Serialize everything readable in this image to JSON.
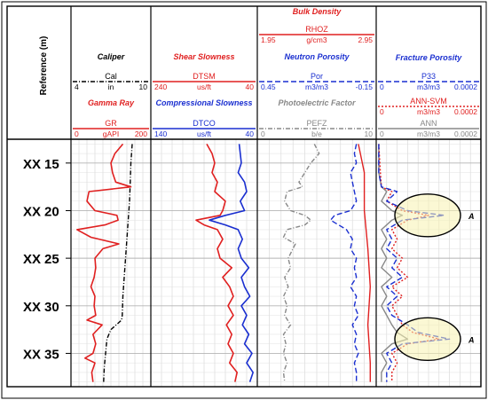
{
  "header": {
    "depth_title": "Reference (m)"
  },
  "depth_labels": [
    {
      "prefix": "XX",
      "value": "15",
      "depth": 15
    },
    {
      "prefix": "XX",
      "value": "20",
      "depth": 20
    },
    {
      "prefix": "XX",
      "value": "25",
      "depth": 25
    },
    {
      "prefix": "XX",
      "value": "30",
      "depth": 30
    },
    {
      "prefix": "XX",
      "value": "35",
      "depth": 35
    }
  ],
  "annotations": [
    {
      "label": "A",
      "depth": 20.5
    },
    {
      "label": "A",
      "depth": 33.5
    }
  ],
  "tracks": [
    {
      "curves": [
        {
          "title": "Caliper",
          "mnemonic": "Cal",
          "unit": "in",
          "min": "4",
          "max": "10",
          "color": "#000000",
          "dash": "5,2,1,2"
        },
        {
          "title": "Gamma Ray",
          "mnemonic": "GR",
          "unit": "gAPI",
          "min": "0",
          "max": "200",
          "color": "#e02020",
          "dash": ""
        }
      ]
    },
    {
      "curves": [
        {
          "title": "Shear Slowness",
          "mnemonic": "DTSM",
          "unit": "us/ft",
          "min": "240",
          "max": "40",
          "color": "#e02020",
          "dash": ""
        },
        {
          "title": "Compressional Slowness",
          "mnemonic": "DTCO",
          "unit": "us/ft",
          "min": "140",
          "max": "40",
          "color": "#1a2fd0",
          "dash": ""
        }
      ]
    },
    {
      "curves": [
        {
          "title": "Bulk Density",
          "mnemonic": "RHOZ",
          "unit": "g/cm3",
          "min": "1.95",
          "max": "2.95",
          "color": "#e02020",
          "dash": ""
        },
        {
          "title": "Neutron Porosity",
          "mnemonic": "Por",
          "unit": "m3/m3",
          "min": "0.45",
          "max": "-0.15",
          "color": "#1a2fd0",
          "dash": "6,3"
        },
        {
          "title": "Photoelectric Factor",
          "mnemonic": "PEFZ",
          "unit": "b/e",
          "min": "0",
          "max": "10",
          "color": "#888888",
          "dash": "5,2,1,2"
        }
      ]
    },
    {
      "curves": [
        {
          "title": "Fracture Porosity",
          "mnemonic": "P33",
          "unit": "m3/m3",
          "min": "0",
          "max": "0.0002",
          "color": "#1a2fd0",
          "dash": "6,3"
        },
        {
          "title": "",
          "mnemonic": "ANN-SVM",
          "unit": "m3/m3",
          "min": "0",
          "max": "0.0002",
          "color": "#e02020",
          "dash": "2,2"
        },
        {
          "title": "",
          "mnemonic": "ANN",
          "unit": "m3/m3",
          "min": "0",
          "max": "0.0002",
          "color": "#888888",
          "dash": ""
        }
      ]
    }
  ],
  "chart_data": {
    "type": "line",
    "depth_range": [
      12.5,
      38.5
    ],
    "depth_unit": "m",
    "curves": {
      "GR": {
        "range": [
          0,
          200
        ],
        "points": [
          [
            13.0,
            130
          ],
          [
            14.0,
            110
          ],
          [
            15.0,
            100
          ],
          [
            16.0,
            104
          ],
          [
            17.0,
            112
          ],
          [
            17.5,
            150
          ],
          [
            18.0,
            45
          ],
          [
            19.0,
            40
          ],
          [
            20.0,
            60
          ],
          [
            20.5,
            115
          ],
          [
            21.0,
            118
          ],
          [
            21.5,
            85
          ],
          [
            22.0,
            15
          ],
          [
            22.8,
            50
          ],
          [
            23.5,
            120
          ],
          [
            24.0,
            80
          ],
          [
            25.0,
            60
          ],
          [
            26.0,
            62
          ],
          [
            27.0,
            58
          ],
          [
            28.0,
            50
          ],
          [
            29.0,
            60
          ],
          [
            30.0,
            58
          ],
          [
            31.0,
            62
          ],
          [
            31.5,
            40
          ],
          [
            32.0,
            78
          ],
          [
            33.0,
            55
          ],
          [
            34.0,
            62
          ],
          [
            35.0,
            55
          ],
          [
            35.5,
            35
          ],
          [
            36.0,
            60
          ],
          [
            37.0,
            52
          ],
          [
            38.0,
            55
          ]
        ]
      },
      "Cal": {
        "range": [
          4,
          10
        ],
        "points": [
          [
            13.0,
            8.6
          ],
          [
            15.0,
            8.5
          ],
          [
            17.0,
            8.45
          ],
          [
            19.0,
            8.4
          ],
          [
            21.0,
            8.3
          ],
          [
            23.0,
            8.2
          ],
          [
            25.0,
            8.1
          ],
          [
            27.0,
            8.0
          ],
          [
            29.0,
            7.9
          ],
          [
            31.0,
            7.85
          ],
          [
            31.5,
            7.8
          ],
          [
            32.0,
            7.4
          ],
          [
            32.5,
            7.0
          ],
          [
            33.5,
            6.7
          ],
          [
            35.0,
            6.6
          ],
          [
            36.5,
            6.5
          ],
          [
            38.0,
            6.45
          ]
        ]
      },
      "DTSM": {
        "range": [
          240,
          40
        ],
        "points": [
          [
            13.0,
            135
          ],
          [
            14.0,
            125
          ],
          [
            15.0,
            120
          ],
          [
            16.0,
            125
          ],
          [
            17.0,
            115
          ],
          [
            18.0,
            120
          ],
          [
            19.0,
            100
          ],
          [
            20.0,
            105
          ],
          [
            20.5,
            110
          ],
          [
            21.0,
            155
          ],
          [
            21.5,
            140
          ],
          [
            22.0,
            115
          ],
          [
            23.0,
            105
          ],
          [
            24.0,
            115
          ],
          [
            25.0,
            110
          ],
          [
            26.0,
            88
          ],
          [
            27.0,
            105
          ],
          [
            28.0,
            92
          ],
          [
            29.0,
            85
          ],
          [
            30.0,
            95
          ],
          [
            31.0,
            85
          ],
          [
            32.0,
            98
          ],
          [
            33.0,
            88
          ],
          [
            34.0,
            95
          ],
          [
            35.0,
            85
          ],
          [
            36.0,
            92
          ],
          [
            37.0,
            78
          ],
          [
            38.0,
            82
          ]
        ]
      },
      "DTCO": {
        "range": [
          140,
          40
        ],
        "points": [
          [
            13.0,
            57
          ],
          [
            14.0,
            56
          ],
          [
            15.0,
            55
          ],
          [
            16.0,
            58
          ],
          [
            17.0,
            52
          ],
          [
            18.0,
            50
          ],
          [
            19.0,
            56
          ],
          [
            20.0,
            52
          ],
          [
            20.5,
            70
          ],
          [
            21.0,
            85
          ],
          [
            21.5,
            70
          ],
          [
            22.0,
            58
          ],
          [
            23.0,
            54
          ],
          [
            24.0,
            58
          ],
          [
            25.0,
            55
          ],
          [
            26.0,
            48
          ],
          [
            27.0,
            55
          ],
          [
            28.0,
            52
          ],
          [
            29.0,
            47
          ],
          [
            30.0,
            55
          ],
          [
            31.0,
            50
          ],
          [
            32.0,
            54
          ],
          [
            33.0,
            48
          ],
          [
            34.0,
            52
          ],
          [
            35.0,
            45
          ],
          [
            36.0,
            50
          ],
          [
            37.0,
            44
          ],
          [
            38.0,
            47
          ]
        ]
      },
      "RHOZ": {
        "range": [
          1.95,
          2.95
        ],
        "points": [
          [
            13.0,
            2.8
          ],
          [
            16.0,
            2.85
          ],
          [
            20.0,
            2.85
          ],
          [
            24.0,
            2.88
          ],
          [
            28.0,
            2.9
          ],
          [
            32.0,
            2.88
          ],
          [
            36.0,
            2.9
          ],
          [
            38.0,
            2.9
          ]
        ]
      },
      "Por": {
        "range": [
          0.45,
          -0.15
        ],
        "points": [
          [
            13.0,
            -0.05
          ],
          [
            14.0,
            -0.04
          ],
          [
            15.0,
            -0.05
          ],
          [
            16.0,
            -0.02
          ],
          [
            17.0,
            -0.03
          ],
          [
            18.0,
            -0.04
          ],
          [
            19.0,
            -0.05
          ],
          [
            20.0,
            -0.02
          ],
          [
            20.5,
            0.06
          ],
          [
            21.0,
            0.08
          ],
          [
            21.5,
            0.04
          ],
          [
            22.0,
            0.0
          ],
          [
            23.0,
            -0.03
          ],
          [
            24.0,
            -0.02
          ],
          [
            25.0,
            -0.05
          ],
          [
            26.0,
            -0.04
          ],
          [
            27.0,
            -0.05
          ],
          [
            28.0,
            -0.02
          ],
          [
            29.0,
            -0.05
          ],
          [
            30.0,
            -0.04
          ],
          [
            31.0,
            -0.06
          ],
          [
            32.0,
            -0.03
          ],
          [
            33.0,
            -0.05
          ],
          [
            34.0,
            -0.04
          ],
          [
            35.0,
            -0.06
          ],
          [
            36.0,
            -0.04
          ],
          [
            37.0,
            -0.05
          ],
          [
            38.0,
            -0.05
          ]
        ]
      },
      "PEFZ": {
        "range": [
          0,
          10
        ],
        "points": [
          [
            13.0,
            4.8
          ],
          [
            14.0,
            5.2
          ],
          [
            15.0,
            4.5
          ],
          [
            16.0,
            4.0
          ],
          [
            17.0,
            3.5
          ],
          [
            17.5,
            3.8
          ],
          [
            18.0,
            2.5
          ],
          [
            19.0,
            2.3
          ],
          [
            20.0,
            2.8
          ],
          [
            20.5,
            4.0
          ],
          [
            21.0,
            4.5
          ],
          [
            21.5,
            4.0
          ],
          [
            22.0,
            2.5
          ],
          [
            22.8,
            2.2
          ],
          [
            23.5,
            3.2
          ],
          [
            24.0,
            3.0
          ],
          [
            25.0,
            2.6
          ],
          [
            26.0,
            2.8
          ],
          [
            27.0,
            2.3
          ],
          [
            28.0,
            2.6
          ],
          [
            29.0,
            2.2
          ],
          [
            30.0,
            2.5
          ],
          [
            31.0,
            2.3
          ],
          [
            32.0,
            2.8
          ],
          [
            33.0,
            2.2
          ],
          [
            34.0,
            2.4
          ],
          [
            35.0,
            2.2
          ],
          [
            36.0,
            2.5
          ],
          [
            37.0,
            2.2
          ],
          [
            38.0,
            2.3
          ]
        ]
      },
      "P33": {
        "range": [
          0,
          0.0002
        ],
        "points": [
          [
            13.0,
            5e-06
          ],
          [
            16.0,
            5e-06
          ],
          [
            17.5,
            1e-05
          ],
          [
            18.0,
            4e-05
          ],
          [
            19.0,
            2e-05
          ],
          [
            20.0,
            6e-05
          ],
          [
            20.5,
            0.00013
          ],
          [
            21.0,
            5e-05
          ],
          [
            22.0,
            2e-05
          ],
          [
            23.0,
            3e-05
          ],
          [
            24.0,
            2e-05
          ],
          [
            25.0,
            4e-05
          ],
          [
            26.0,
            3e-05
          ],
          [
            27.0,
            5e-05
          ],
          [
            28.0,
            2e-05
          ],
          [
            29.0,
            4e-05
          ],
          [
            30.0,
            2e-05
          ],
          [
            31.0,
            3e-05
          ],
          [
            32.0,
            6e-05
          ],
          [
            32.8,
            8e-05
          ],
          [
            33.5,
            0.00014
          ],
          [
            34.0,
            5e-05
          ],
          [
            35.0,
            2e-05
          ],
          [
            36.0,
            3e-05
          ],
          [
            37.0,
            2e-05
          ],
          [
            38.0,
            2e-05
          ]
        ]
      },
      "ANN-SVM": {
        "range": [
          0,
          0.0002
        ],
        "points": [
          [
            13.0,
            5e-06
          ],
          [
            16.0,
            8e-06
          ],
          [
            17.5,
            1e-05
          ],
          [
            18.0,
            3e-05
          ],
          [
            19.0,
            2e-05
          ],
          [
            20.0,
            5e-05
          ],
          [
            20.5,
            0.0001
          ],
          [
            21.0,
            6e-05
          ],
          [
            22.0,
            3e-05
          ],
          [
            23.0,
            4e-05
          ],
          [
            24.0,
            3e-05
          ],
          [
            25.0,
            5e-05
          ],
          [
            26.0,
            4e-05
          ],
          [
            27.0,
            6e-05
          ],
          [
            28.0,
            3e-05
          ],
          [
            29.0,
            5e-05
          ],
          [
            30.0,
            3e-05
          ],
          [
            31.0,
            4e-05
          ],
          [
            32.0,
            5e-05
          ],
          [
            32.8,
            7e-05
          ],
          [
            33.5,
            0.00012
          ],
          [
            34.0,
            6e-05
          ],
          [
            35.0,
            3e-05
          ],
          [
            36.0,
            4e-05
          ],
          [
            37.0,
            3e-05
          ],
          [
            38.0,
            3e-05
          ]
        ]
      },
      "ANN": {
        "range": [
          0,
          0.0002
        ],
        "points": [
          [
            13.0,
            5e-06
          ],
          [
            16.0,
            5e-06
          ],
          [
            17.5,
            1e-05
          ],
          [
            18.0,
            2e-05
          ],
          [
            19.0,
            1e-05
          ],
          [
            20.0,
            3e-05
          ],
          [
            20.5,
            5e-05
          ],
          [
            21.0,
            3e-05
          ],
          [
            22.0,
            1e-05
          ],
          [
            23.0,
            2e-05
          ],
          [
            24.0,
            1e-05
          ],
          [
            25.0,
            2e-05
          ],
          [
            26.0,
            1e-05
          ],
          [
            27.0,
            3e-05
          ],
          [
            28.0,
            1e-05
          ],
          [
            29.0,
            2e-05
          ],
          [
            30.0,
            1e-05
          ],
          [
            31.0,
            2e-05
          ],
          [
            32.0,
            3e-05
          ],
          [
            32.8,
            4e-05
          ],
          [
            33.5,
            6e-05
          ],
          [
            34.0,
            3e-05
          ],
          [
            35.0,
            1e-05
          ],
          [
            36.0,
            2e-05
          ],
          [
            37.0,
            1e-05
          ],
          [
            38.0,
            1e-05
          ]
        ]
      }
    }
  }
}
